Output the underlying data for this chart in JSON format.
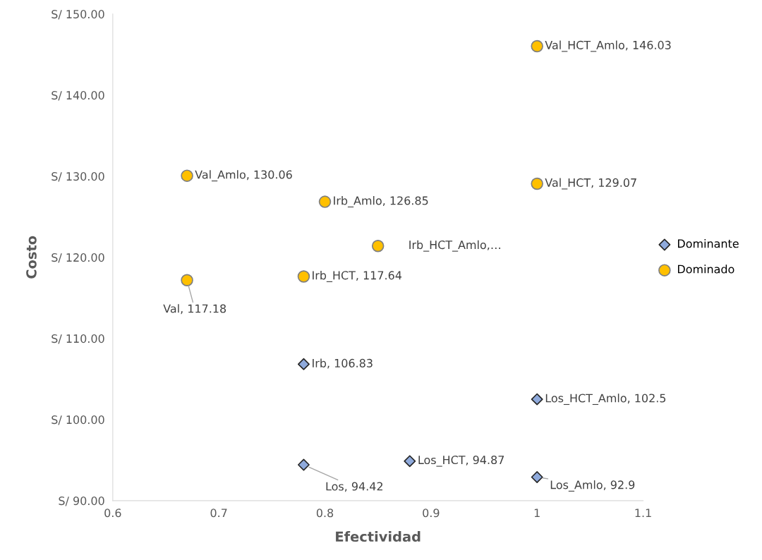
{
  "chart_data": {
    "type": "scatter",
    "xlabel": "Efectividad",
    "ylabel": "Costo",
    "xlim": [
      0.6,
      1.1
    ],
    "xticks": [
      0.6,
      0.7,
      0.8,
      0.9,
      {
        "value": 1,
        "label": "1"
      },
      1.1
    ],
    "ylim": [
      90,
      150
    ],
    "yticks": [
      {
        "value": 90,
        "label": "S/ 90.00"
      },
      {
        "value": 100,
        "label": "S/ 100.00"
      },
      {
        "value": 110,
        "label": "S/ 110.00"
      },
      {
        "value": 120,
        "label": "S/ 120.00"
      },
      {
        "value": 130,
        "label": "S/ 130.00"
      },
      {
        "value": 140,
        "label": "S/ 140.00"
      },
      {
        "value": 150,
        "label": "S/ 150.00"
      }
    ],
    "grid": false,
    "legend": "right",
    "series": [
      {
        "name": "Dominante",
        "color": "#8faadc",
        "marker": "diamond",
        "x": [
          0.78,
          1.0,
          0.78,
          0.88,
          1.0
        ],
        "values": [
          106.83,
          102.5,
          94.42,
          94.87,
          92.9
        ]
      },
      {
        "name": "Dominado",
        "color": "#ffc000",
        "marker": "circle",
        "x": [
          1.0,
          0.67,
          0.8,
          1.0,
          0.85,
          0.78,
          0.67
        ],
        "values": [
          146.03,
          130.06,
          126.85,
          129.07,
          121.4,
          117.64,
          117.18
        ]
      }
    ],
    "annotations": [
      {
        "text": "Irb, 106.83",
        "x": 0.78,
        "y": 106.83
      },
      {
        "text": "Los_HCT_Amlo, 102.5",
        "x": 1.0,
        "y": 102.5
      },
      {
        "text": "Los, 94.42",
        "x": 0.78,
        "y": 94.42
      },
      {
        "text": "Los_HCT, 94.87",
        "x": 0.88,
        "y": 94.87
      },
      {
        "text": "Los_Amlo, 92.9",
        "x": 1.0,
        "y": 92.9
      },
      {
        "text": "Val_HCT_Amlo, 146.03",
        "x": 1.0,
        "y": 146.03
      },
      {
        "text": "Val_Amlo, 130.06",
        "x": 0.67,
        "y": 130.06
      },
      {
        "text": "Irb_Amlo, 126.85",
        "x": 0.8,
        "y": 126.85
      },
      {
        "text": "Val_HCT, 129.07",
        "x": 1.0,
        "y": 129.07
      },
      {
        "text": "Irb_HCT_Amlo,…",
        "x": 0.85,
        "y": 121.4
      },
      {
        "text": "Irb_HCT, 117.64",
        "x": 0.78,
        "y": 117.64
      },
      {
        "text": "Val, 117.18",
        "x": 0.67,
        "y": 117.18
      }
    ]
  }
}
